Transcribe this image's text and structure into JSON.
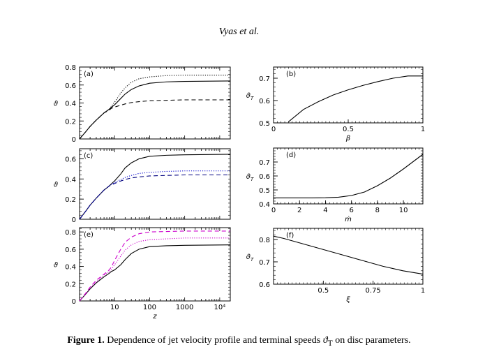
{
  "header": {
    "author": "Vyas et al."
  },
  "caption": {
    "label": "Figure 1.",
    "text_before": "Dependence of jet velocity profile and terminal speeds",
    "symbol": "ϑ",
    "subscript": "T",
    "text_after": "on disc parameters."
  },
  "chart_data": [
    {
      "id": "a",
      "type": "line",
      "panel_label": "(a)",
      "xscale": "log",
      "xlim": [
        1,
        20000
      ],
      "ylim": [
        0,
        0.8
      ],
      "yticks": [
        0,
        0.2,
        0.4,
        0.6,
        0.8
      ],
      "yticklabels": [
        "0",
        "0.2",
        "0.4",
        "0.6",
        "0.8"
      ],
      "ylabel": "ϑ",
      "xlabel": "",
      "series": [
        {
          "name": "solid",
          "color": "#000000",
          "dash": "solid",
          "x": [
            1,
            1.5,
            2,
            3,
            5,
            7,
            8,
            10,
            15,
            20,
            30,
            50,
            100,
            300,
            1000,
            20000
          ],
          "y": [
            0,
            0.08,
            0.14,
            0.21,
            0.29,
            0.33,
            0.35,
            0.38,
            0.45,
            0.5,
            0.55,
            0.59,
            0.62,
            0.635,
            0.64,
            0.645
          ]
        },
        {
          "name": "dotted",
          "color": "#000000",
          "dash": "dotted",
          "x": [
            1,
            1.5,
            2,
            3,
            5,
            7,
            8,
            10,
            15,
            20,
            30,
            50,
            100,
            300,
            1000,
            20000
          ],
          "y": [
            0,
            0.08,
            0.14,
            0.21,
            0.29,
            0.33,
            0.36,
            0.41,
            0.51,
            0.57,
            0.63,
            0.67,
            0.69,
            0.705,
            0.71,
            0.71
          ]
        },
        {
          "name": "dashed",
          "color": "#000000",
          "dash": "dashed",
          "x": [
            1,
            1.5,
            2,
            3,
            5,
            7,
            8,
            10,
            15,
            20,
            30,
            50,
            100,
            300,
            1000,
            20000
          ],
          "y": [
            0,
            0.08,
            0.14,
            0.21,
            0.29,
            0.32,
            0.34,
            0.355,
            0.375,
            0.39,
            0.405,
            0.415,
            0.425,
            0.43,
            0.435,
            0.435
          ]
        }
      ]
    },
    {
      "id": "c",
      "type": "line",
      "panel_label": "(c)",
      "xscale": "log",
      "xlim": [
        1,
        20000
      ],
      "ylim": [
        0,
        0.7
      ],
      "yticks": [
        0,
        0.2,
        0.4,
        0.6
      ],
      "yticklabels": [
        "0",
        "0.2",
        "0.4",
        "0.6"
      ],
      "ylabel": "ϑ",
      "xlabel": "",
      "series": [
        {
          "name": "solid",
          "color": "#000000",
          "dash": "solid",
          "x": [
            1,
            1.5,
            2,
            3,
            5,
            7,
            8,
            10,
            15,
            20,
            30,
            50,
            100,
            300,
            1000,
            20000
          ],
          "y": [
            0,
            0.08,
            0.14,
            0.21,
            0.29,
            0.33,
            0.35,
            0.38,
            0.45,
            0.51,
            0.56,
            0.6,
            0.625,
            0.635,
            0.64,
            0.645
          ]
        },
        {
          "name": "dotted",
          "color": "#0000cc",
          "dash": "dotted",
          "x": [
            1,
            1.5,
            2,
            3,
            5,
            7,
            8,
            10,
            15,
            20,
            30,
            50,
            100,
            300,
            1000,
            20000
          ],
          "y": [
            0,
            0.08,
            0.14,
            0.21,
            0.29,
            0.33,
            0.345,
            0.365,
            0.395,
            0.415,
            0.435,
            0.455,
            0.465,
            0.475,
            0.48,
            0.48
          ]
        },
        {
          "name": "dashed",
          "color": "#000080",
          "dash": "dashed",
          "x": [
            1,
            1.5,
            2,
            3,
            5,
            7,
            8,
            10,
            15,
            20,
            30,
            50,
            100,
            300,
            1000,
            20000
          ],
          "y": [
            0,
            0.08,
            0.14,
            0.21,
            0.29,
            0.33,
            0.34,
            0.355,
            0.38,
            0.395,
            0.41,
            0.42,
            0.43,
            0.435,
            0.44,
            0.44
          ]
        }
      ]
    },
    {
      "id": "e",
      "type": "line",
      "panel_label": "(e)",
      "xscale": "log",
      "xlim": [
        1,
        20000
      ],
      "ylim": [
        0,
        0.85
      ],
      "yticks": [
        0,
        0.2,
        0.4,
        0.6,
        0.8
      ],
      "yticklabels": [
        "0",
        "0.2",
        "0.4",
        "0.6",
        "0.8"
      ],
      "xticks": [
        10,
        100,
        1000,
        10000
      ],
      "xticklabels": [
        "10",
        "100",
        "1000",
        "10⁴"
      ],
      "ylabel": "ϑ",
      "xlabel": "z",
      "series": [
        {
          "name": "solid",
          "color": "#000000",
          "dash": "solid",
          "x": [
            1,
            1.5,
            2,
            3,
            5,
            7,
            8,
            10,
            15,
            20,
            30,
            50,
            100,
            300,
            1000,
            20000
          ],
          "y": [
            0,
            0.08,
            0.14,
            0.21,
            0.28,
            0.32,
            0.34,
            0.36,
            0.42,
            0.48,
            0.55,
            0.6,
            0.63,
            0.64,
            0.645,
            0.65
          ]
        },
        {
          "name": "dotted",
          "color": "#cc00cc",
          "dash": "dotted",
          "x": [
            1,
            1.5,
            2,
            3,
            5,
            7,
            8,
            10,
            15,
            20,
            30,
            50,
            100,
            300,
            1000,
            20000
          ],
          "y": [
            0,
            0.08,
            0.15,
            0.22,
            0.3,
            0.34,
            0.36,
            0.42,
            0.52,
            0.59,
            0.65,
            0.69,
            0.71,
            0.72,
            0.73,
            0.73
          ]
        },
        {
          "name": "dashed",
          "color": "#cc00cc",
          "dash": "dashed",
          "x": [
            1,
            1.5,
            2,
            3,
            5,
            7,
            8,
            10,
            15,
            20,
            30,
            50,
            100,
            300,
            1000,
            20000
          ],
          "y": [
            0,
            0.09,
            0.16,
            0.24,
            0.31,
            0.36,
            0.39,
            0.47,
            0.6,
            0.68,
            0.74,
            0.78,
            0.8,
            0.805,
            0.81,
            0.81
          ]
        }
      ]
    },
    {
      "id": "b",
      "type": "line",
      "panel_label": "(b)",
      "xscale": "linear",
      "xlim": [
        0,
        1
      ],
      "ylim": [
        0.5,
        0.75
      ],
      "yticks": [
        0.5,
        0.6,
        0.7
      ],
      "yticklabels": [
        "0.5",
        "0.6",
        "0.7"
      ],
      "xticks": [
        0,
        0.5,
        1
      ],
      "xticklabels": [
        "0",
        "0.5",
        "1"
      ],
      "ylabel": "ϑ",
      "ylabel_sub": "T",
      "xlabel": "β",
      "series": [
        {
          "name": "terminal speed",
          "color": "#000000",
          "dash": "solid",
          "x": [
            0.1,
            0.2,
            0.3,
            0.4,
            0.5,
            0.6,
            0.7,
            0.8,
            0.9,
            1.0
          ],
          "y": [
            0.505,
            0.56,
            0.595,
            0.625,
            0.648,
            0.668,
            0.685,
            0.7,
            0.71,
            0.71
          ]
        }
      ]
    },
    {
      "id": "d",
      "type": "line",
      "panel_label": "(d)",
      "xscale": "linear",
      "xlim": [
        0,
        11.5
      ],
      "ylim": [
        0.4,
        0.8
      ],
      "yticks": [
        0.4,
        0.5,
        0.6,
        0.7
      ],
      "yticklabels": [
        "0.4",
        "0.5",
        "0.6",
        "0.7"
      ],
      "xticks": [
        0,
        2,
        4,
        6,
        8,
        10
      ],
      "xticklabels": [
        "0",
        "2",
        "4",
        "6",
        "8",
        "10"
      ],
      "ylabel": "ϑ",
      "ylabel_sub": "T",
      "xlabel": "ṁ",
      "series": [
        {
          "name": "terminal speed",
          "color": "#000000",
          "dash": "solid",
          "x": [
            0,
            1,
            2,
            3,
            4,
            5,
            6,
            7,
            8,
            9,
            10,
            11,
            11.5
          ],
          "y": [
            0.443,
            0.443,
            0.443,
            0.443,
            0.444,
            0.448,
            0.46,
            0.485,
            0.53,
            0.585,
            0.65,
            0.72,
            0.755
          ]
        }
      ]
    },
    {
      "id": "f",
      "type": "line",
      "panel_label": "(f)",
      "xscale": "linear",
      "xlim": [
        0.25,
        1
      ],
      "ylim": [
        0.6,
        0.85
      ],
      "yticks": [
        0.6,
        0.7,
        0.8
      ],
      "yticklabels": [
        "0.6",
        "0.7",
        "0.8"
      ],
      "xticks": [
        0.5,
        0.75,
        1
      ],
      "xticklabels": [
        "0.5",
        "0.75",
        "1"
      ],
      "ylabel": "ϑ",
      "ylabel_sub": "T",
      "xlabel": "ξ",
      "series": [
        {
          "name": "terminal speed",
          "color": "#000000",
          "dash": "solid",
          "x": [
            0.25,
            0.3,
            0.4,
            0.5,
            0.6,
            0.7,
            0.8,
            0.9,
            1.0
          ],
          "y": [
            0.815,
            0.805,
            0.78,
            0.755,
            0.73,
            0.705,
            0.68,
            0.66,
            0.645
          ]
        }
      ]
    }
  ]
}
